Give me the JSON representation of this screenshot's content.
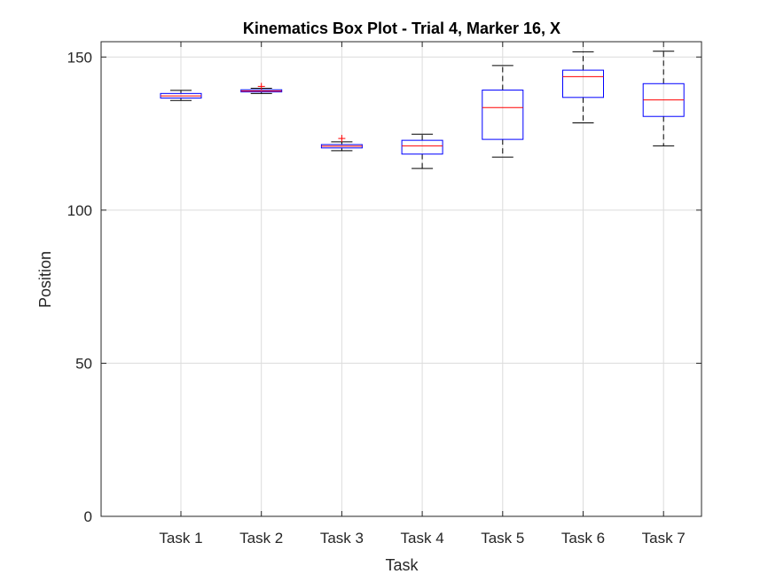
{
  "chart_data": {
    "type": "box",
    "title": "Kinematics Box Plot - Trial 4, Marker 16, X",
    "xlabel": "Task",
    "ylabel": "Position",
    "ylim": [
      0,
      155
    ],
    "yticks": [
      0,
      50,
      100,
      150
    ],
    "grid": true,
    "colors": {
      "box": "#0000ff",
      "median": "#ff0000",
      "whisker": "#000000",
      "outlier": "#ff0000",
      "grid": "#dcdcdc",
      "axis": "#262626"
    },
    "categories": [
      "Task 1",
      "Task 2",
      "Task 3",
      "Task 4",
      "Task 5",
      "Task 6",
      "Task 7"
    ],
    "boxes": [
      {
        "label": "Task 1",
        "whisker_low": 135.8,
        "q1": 136.6,
        "median": 137.3,
        "q3": 138.1,
        "whisker_high": 139.1,
        "outliers": []
      },
      {
        "label": "Task 2",
        "whisker_low": 138.1,
        "q1": 138.6,
        "median": 138.9,
        "q3": 139.3,
        "whisker_high": 139.8,
        "outliers": [
          140.4
        ]
      },
      {
        "label": "Task 3",
        "whisker_low": 119.4,
        "q1": 120.3,
        "median": 120.9,
        "q3": 121.4,
        "whisker_high": 122.3,
        "outliers": [
          123.4
        ]
      },
      {
        "label": "Task 4",
        "whisker_low": 113.6,
        "q1": 118.3,
        "median": 121.0,
        "q3": 122.8,
        "whisker_high": 124.8,
        "outliers": []
      },
      {
        "label": "Task 5",
        "whisker_low": 117.3,
        "q1": 123.1,
        "median": 133.5,
        "q3": 139.2,
        "whisker_high": 147.2,
        "outliers": []
      },
      {
        "label": "Task 6",
        "whisker_low": 128.5,
        "q1": 136.8,
        "median": 143.6,
        "q3": 145.7,
        "whisker_high": 151.7,
        "outliers": []
      },
      {
        "label": "Task 7",
        "whisker_low": 121.0,
        "q1": 130.6,
        "median": 136.0,
        "q3": 141.3,
        "whisker_high": 151.9,
        "outliers": []
      }
    ]
  }
}
